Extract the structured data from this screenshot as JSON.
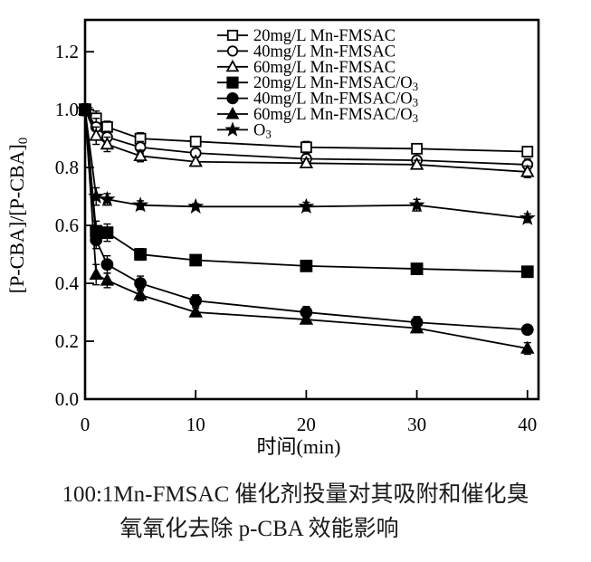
{
  "figure": {
    "background": "#ffffff",
    "ink_color": "#000000"
  },
  "chart_data": {
    "type": "line",
    "title": "",
    "xlabel": "时间(min)",
    "ylabel": "[P-CBA]/[P-CBA]₀",
    "xlim": [
      0,
      41
    ],
    "ylim": [
      0,
      1.31
    ],
    "xticks": [
      0,
      10,
      20,
      30,
      40
    ],
    "yticks": [
      0.0,
      0.2,
      0.4,
      0.6,
      0.8,
      1.0,
      1.2
    ],
    "grid": false,
    "legend_position": "top-center-inside",
    "x": [
      0,
      1,
      2,
      5,
      10,
      20,
      30,
      40
    ],
    "series": [
      {
        "name": "20mg/L Mn-FMSAC",
        "marker": "square-open",
        "values": [
          1.0,
          0.97,
          0.94,
          0.9,
          0.89,
          0.87,
          0.865,
          0.855
        ],
        "errors": [
          0.02,
          0.025,
          0.02,
          0.02,
          0.015,
          0.02,
          0.015,
          0.015
        ]
      },
      {
        "name": "40mg/L Mn-FMSAC",
        "marker": "circle-open",
        "values": [
          1.0,
          0.94,
          0.905,
          0.87,
          0.85,
          0.83,
          0.825,
          0.81
        ],
        "errors": [
          0.02,
          0.03,
          0.02,
          0.02,
          0.015,
          0.015,
          0.015,
          0.02
        ]
      },
      {
        "name": "60mg/L Mn-FMSAC",
        "marker": "triangle-open",
        "values": [
          1.0,
          0.91,
          0.88,
          0.84,
          0.82,
          0.815,
          0.81,
          0.785
        ],
        "errors": [
          0.02,
          0.03,
          0.025,
          0.02,
          0.015,
          0.015,
          0.015,
          0.02
        ]
      },
      {
        "name": "20mg/L Mn-FMSAC/O₃",
        "marker": "square-filled",
        "values": [
          1.0,
          0.58,
          0.575,
          0.5,
          0.48,
          0.46,
          0.45,
          0.44
        ],
        "errors": [
          0.02,
          0.035,
          0.03,
          0.02,
          0.015,
          0.015,
          0.015,
          0.015
        ]
      },
      {
        "name": "40mg/L Mn-FMSAC/O₃",
        "marker": "circle-filled",
        "values": [
          1.0,
          0.55,
          0.465,
          0.4,
          0.34,
          0.3,
          0.265,
          0.24
        ],
        "errors": [
          0.02,
          0.03,
          0.03,
          0.025,
          0.02,
          0.02,
          0.02,
          0.015
        ]
      },
      {
        "name": "60mg/L Mn-FMSAC/O₃",
        "marker": "triangle-filled",
        "values": [
          1.0,
          0.43,
          0.41,
          0.36,
          0.3,
          0.275,
          0.245,
          0.175
        ],
        "errors": [
          0.02,
          0.035,
          0.025,
          0.02,
          0.015,
          0.015,
          0.015,
          0.02
        ]
      },
      {
        "name": "O₃",
        "marker": "star-filled",
        "values": [
          1.0,
          0.7,
          0.69,
          0.67,
          0.665,
          0.665,
          0.67,
          0.625
        ],
        "errors": [
          0.02,
          0.03,
          0.02,
          0.015,
          0.01,
          0.015,
          0.02,
          0.015
        ]
      }
    ]
  },
  "caption": {
    "line1": "100:1Mn-FMSAC 催化剂投量对其吸附和催化臭",
    "line2": "氧氧化去除 p-CBA 效能影响"
  }
}
